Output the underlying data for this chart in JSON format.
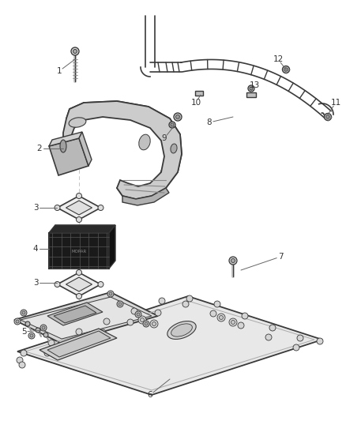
{
  "bg_color": "#ffffff",
  "line_color": "#3a3a3a",
  "fig_width": 4.38,
  "fig_height": 5.33,
  "dpi": 100,
  "label_fs": 7.5,
  "label_color": "#333333"
}
